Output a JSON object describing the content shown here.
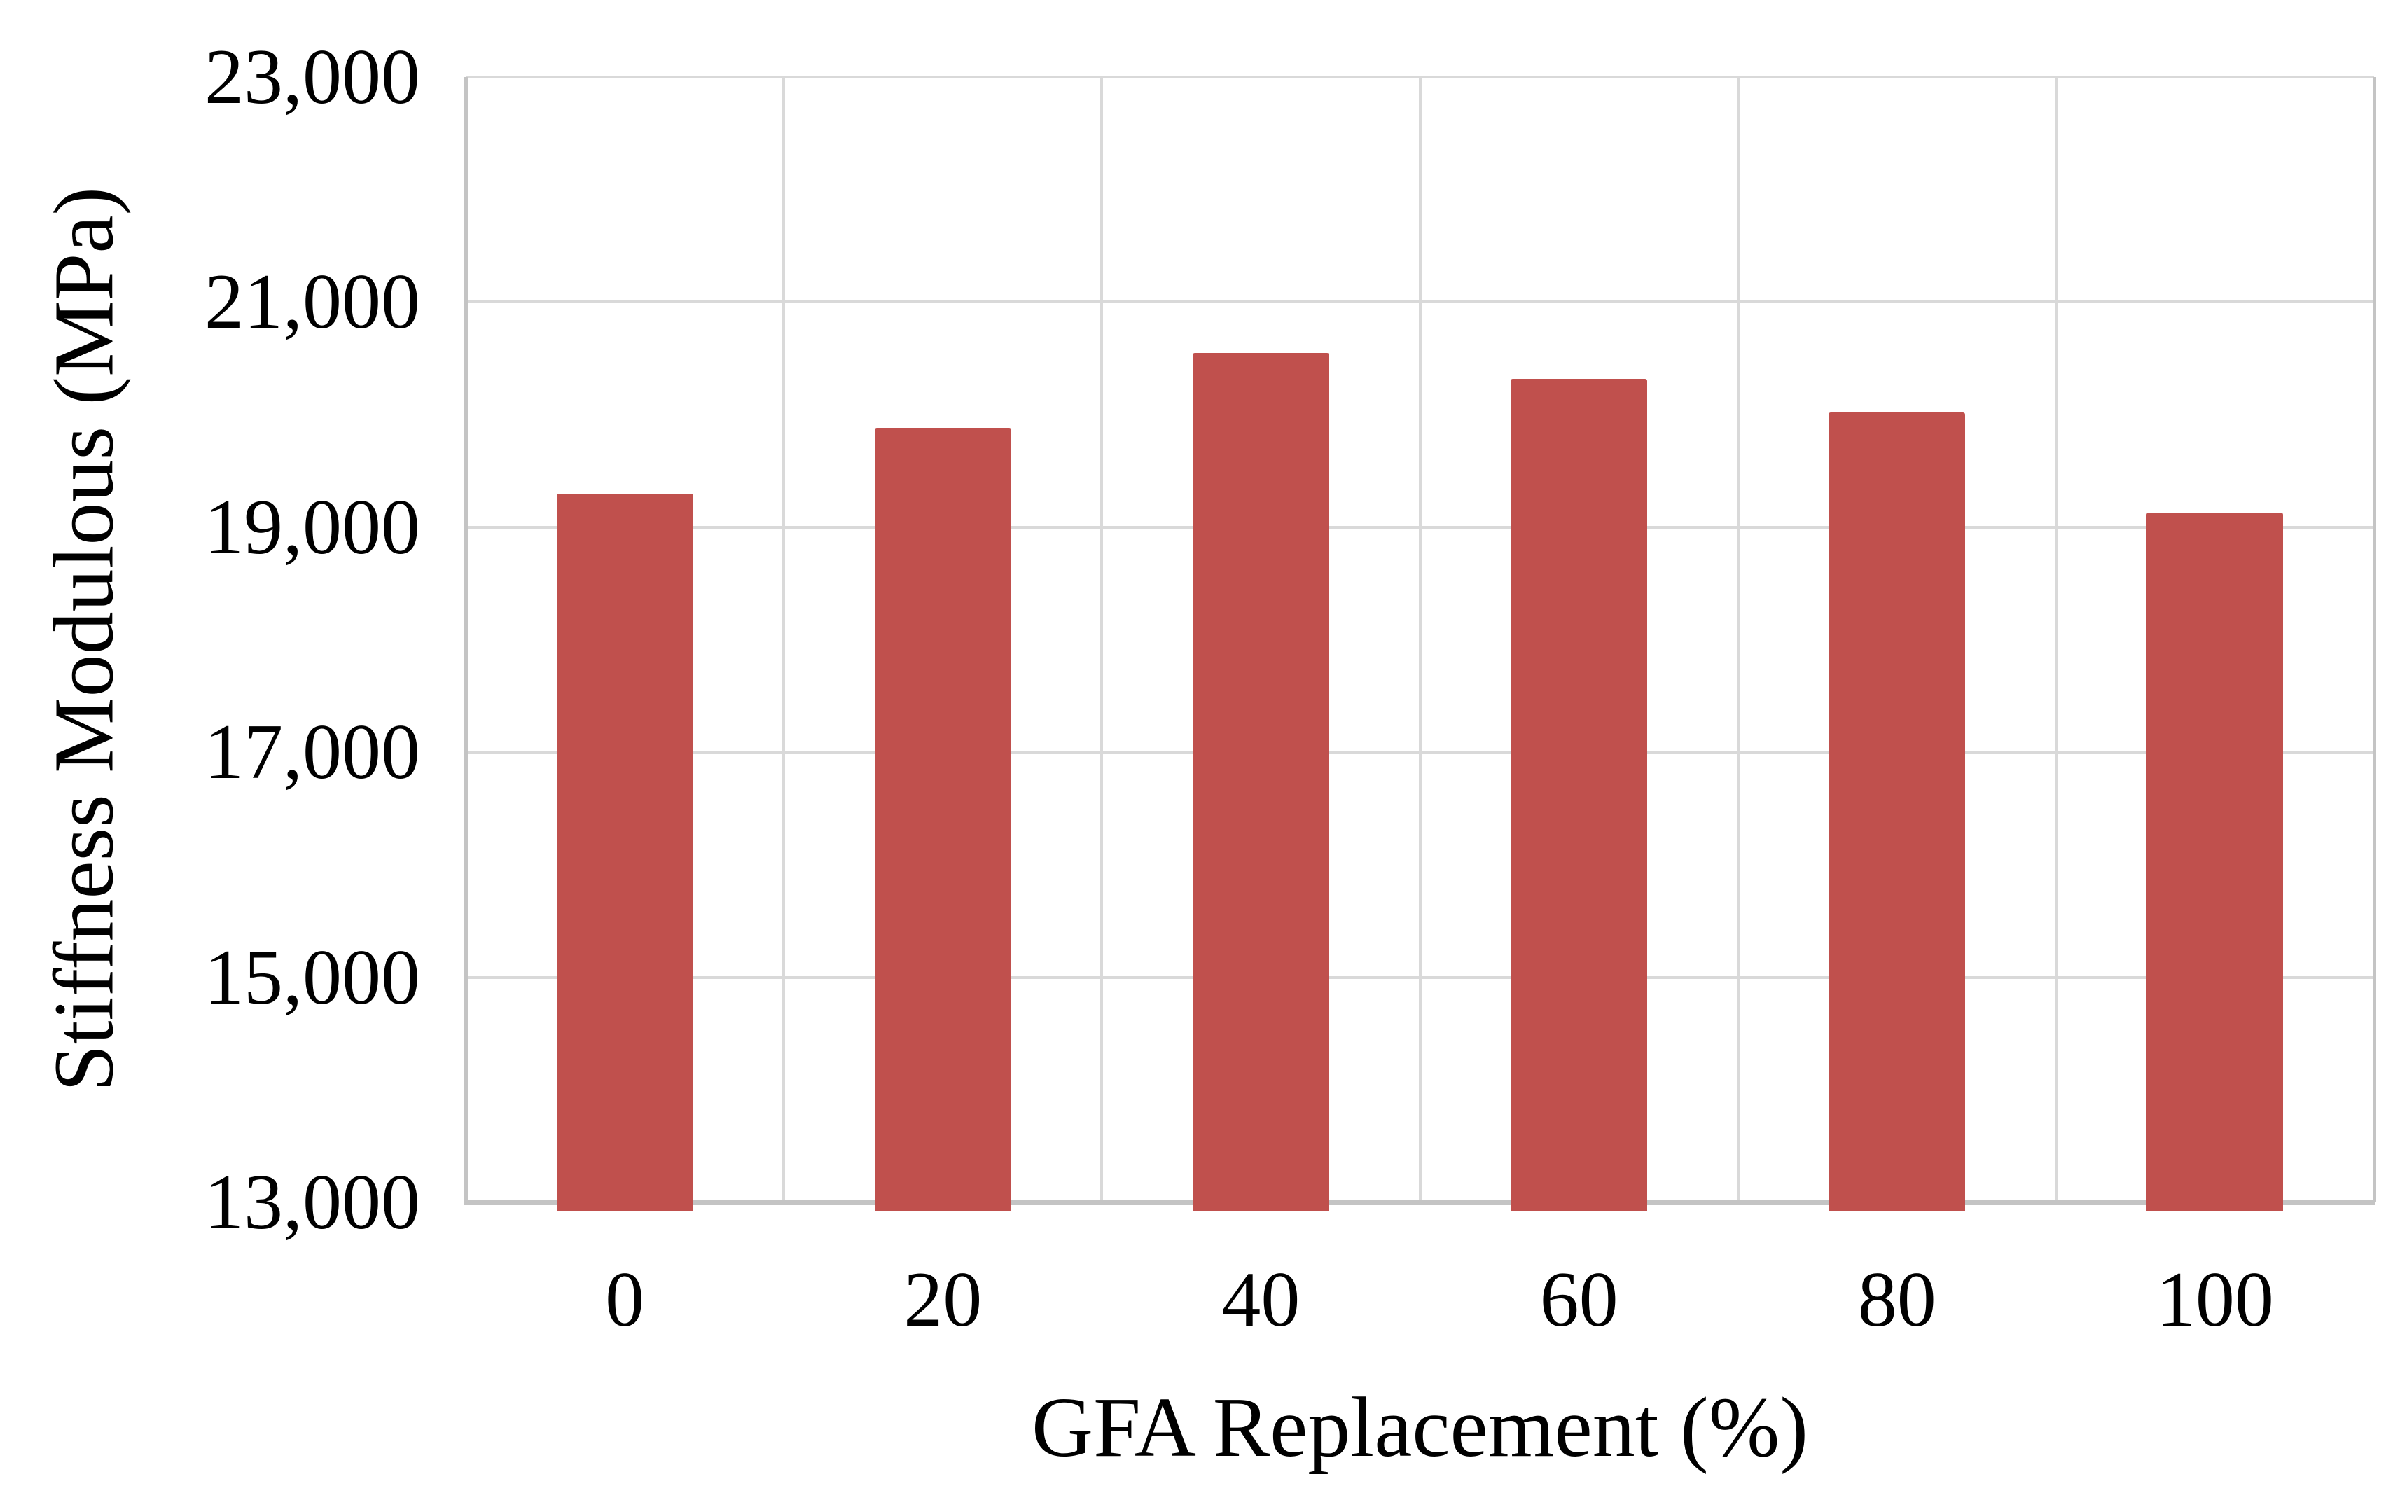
{
  "chart_data": {
    "type": "bar",
    "title": "",
    "xlabel": "GFA Replacement (%)",
    "ylabel": "Stiffness Modulous (MPa)",
    "categories": [
      "0",
      "20",
      "40",
      "60",
      "80",
      "100"
    ],
    "values": [
      19300,
      19880,
      20550,
      20320,
      20020,
      19130
    ],
    "ylim": [
      13000,
      23000
    ],
    "ytick_step": 2000,
    "ytick_labels": [
      "13,000",
      "15,000",
      "17,000",
      "19,000",
      "21,000",
      "23,000"
    ],
    "grid": true,
    "legend": "none",
    "colors": {
      "bar": "#C0504D",
      "gridline": "#D9D9D9",
      "axis": "#C4C4C4",
      "text": "#000000",
      "background": "#FFFFFF"
    }
  }
}
